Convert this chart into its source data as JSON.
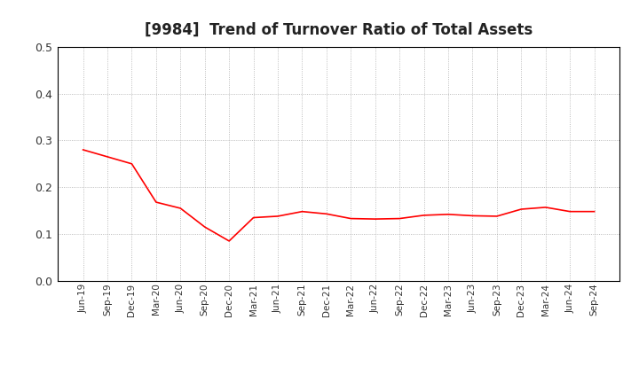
{
  "title": "[9984]  Trend of Turnover Ratio of Total Assets",
  "title_fontsize": 12,
  "line_color": "#ff0000",
  "background_color": "#ffffff",
  "grid_color": "#aaaaaa",
  "ylim": [
    0.0,
    0.5
  ],
  "yticks": [
    0.0,
    0.1,
    0.2,
    0.3,
    0.4,
    0.5
  ],
  "x_labels": [
    "Jun-19",
    "Sep-19",
    "Dec-19",
    "Mar-20",
    "Jun-20",
    "Sep-20",
    "Dec-20",
    "Mar-21",
    "Jun-21",
    "Sep-21",
    "Dec-21",
    "Mar-22",
    "Jun-22",
    "Sep-22",
    "Dec-22",
    "Mar-23",
    "Jun-23",
    "Sep-23",
    "Dec-23",
    "Mar-24",
    "Jun-24",
    "Sep-24"
  ],
  "values": [
    0.28,
    0.265,
    0.25,
    0.168,
    0.155,
    0.115,
    0.085,
    0.135,
    0.138,
    0.148,
    0.143,
    0.133,
    0.132,
    0.133,
    0.14,
    0.142,
    0.139,
    0.138,
    0.153,
    0.157,
    0.148,
    0.148
  ]
}
